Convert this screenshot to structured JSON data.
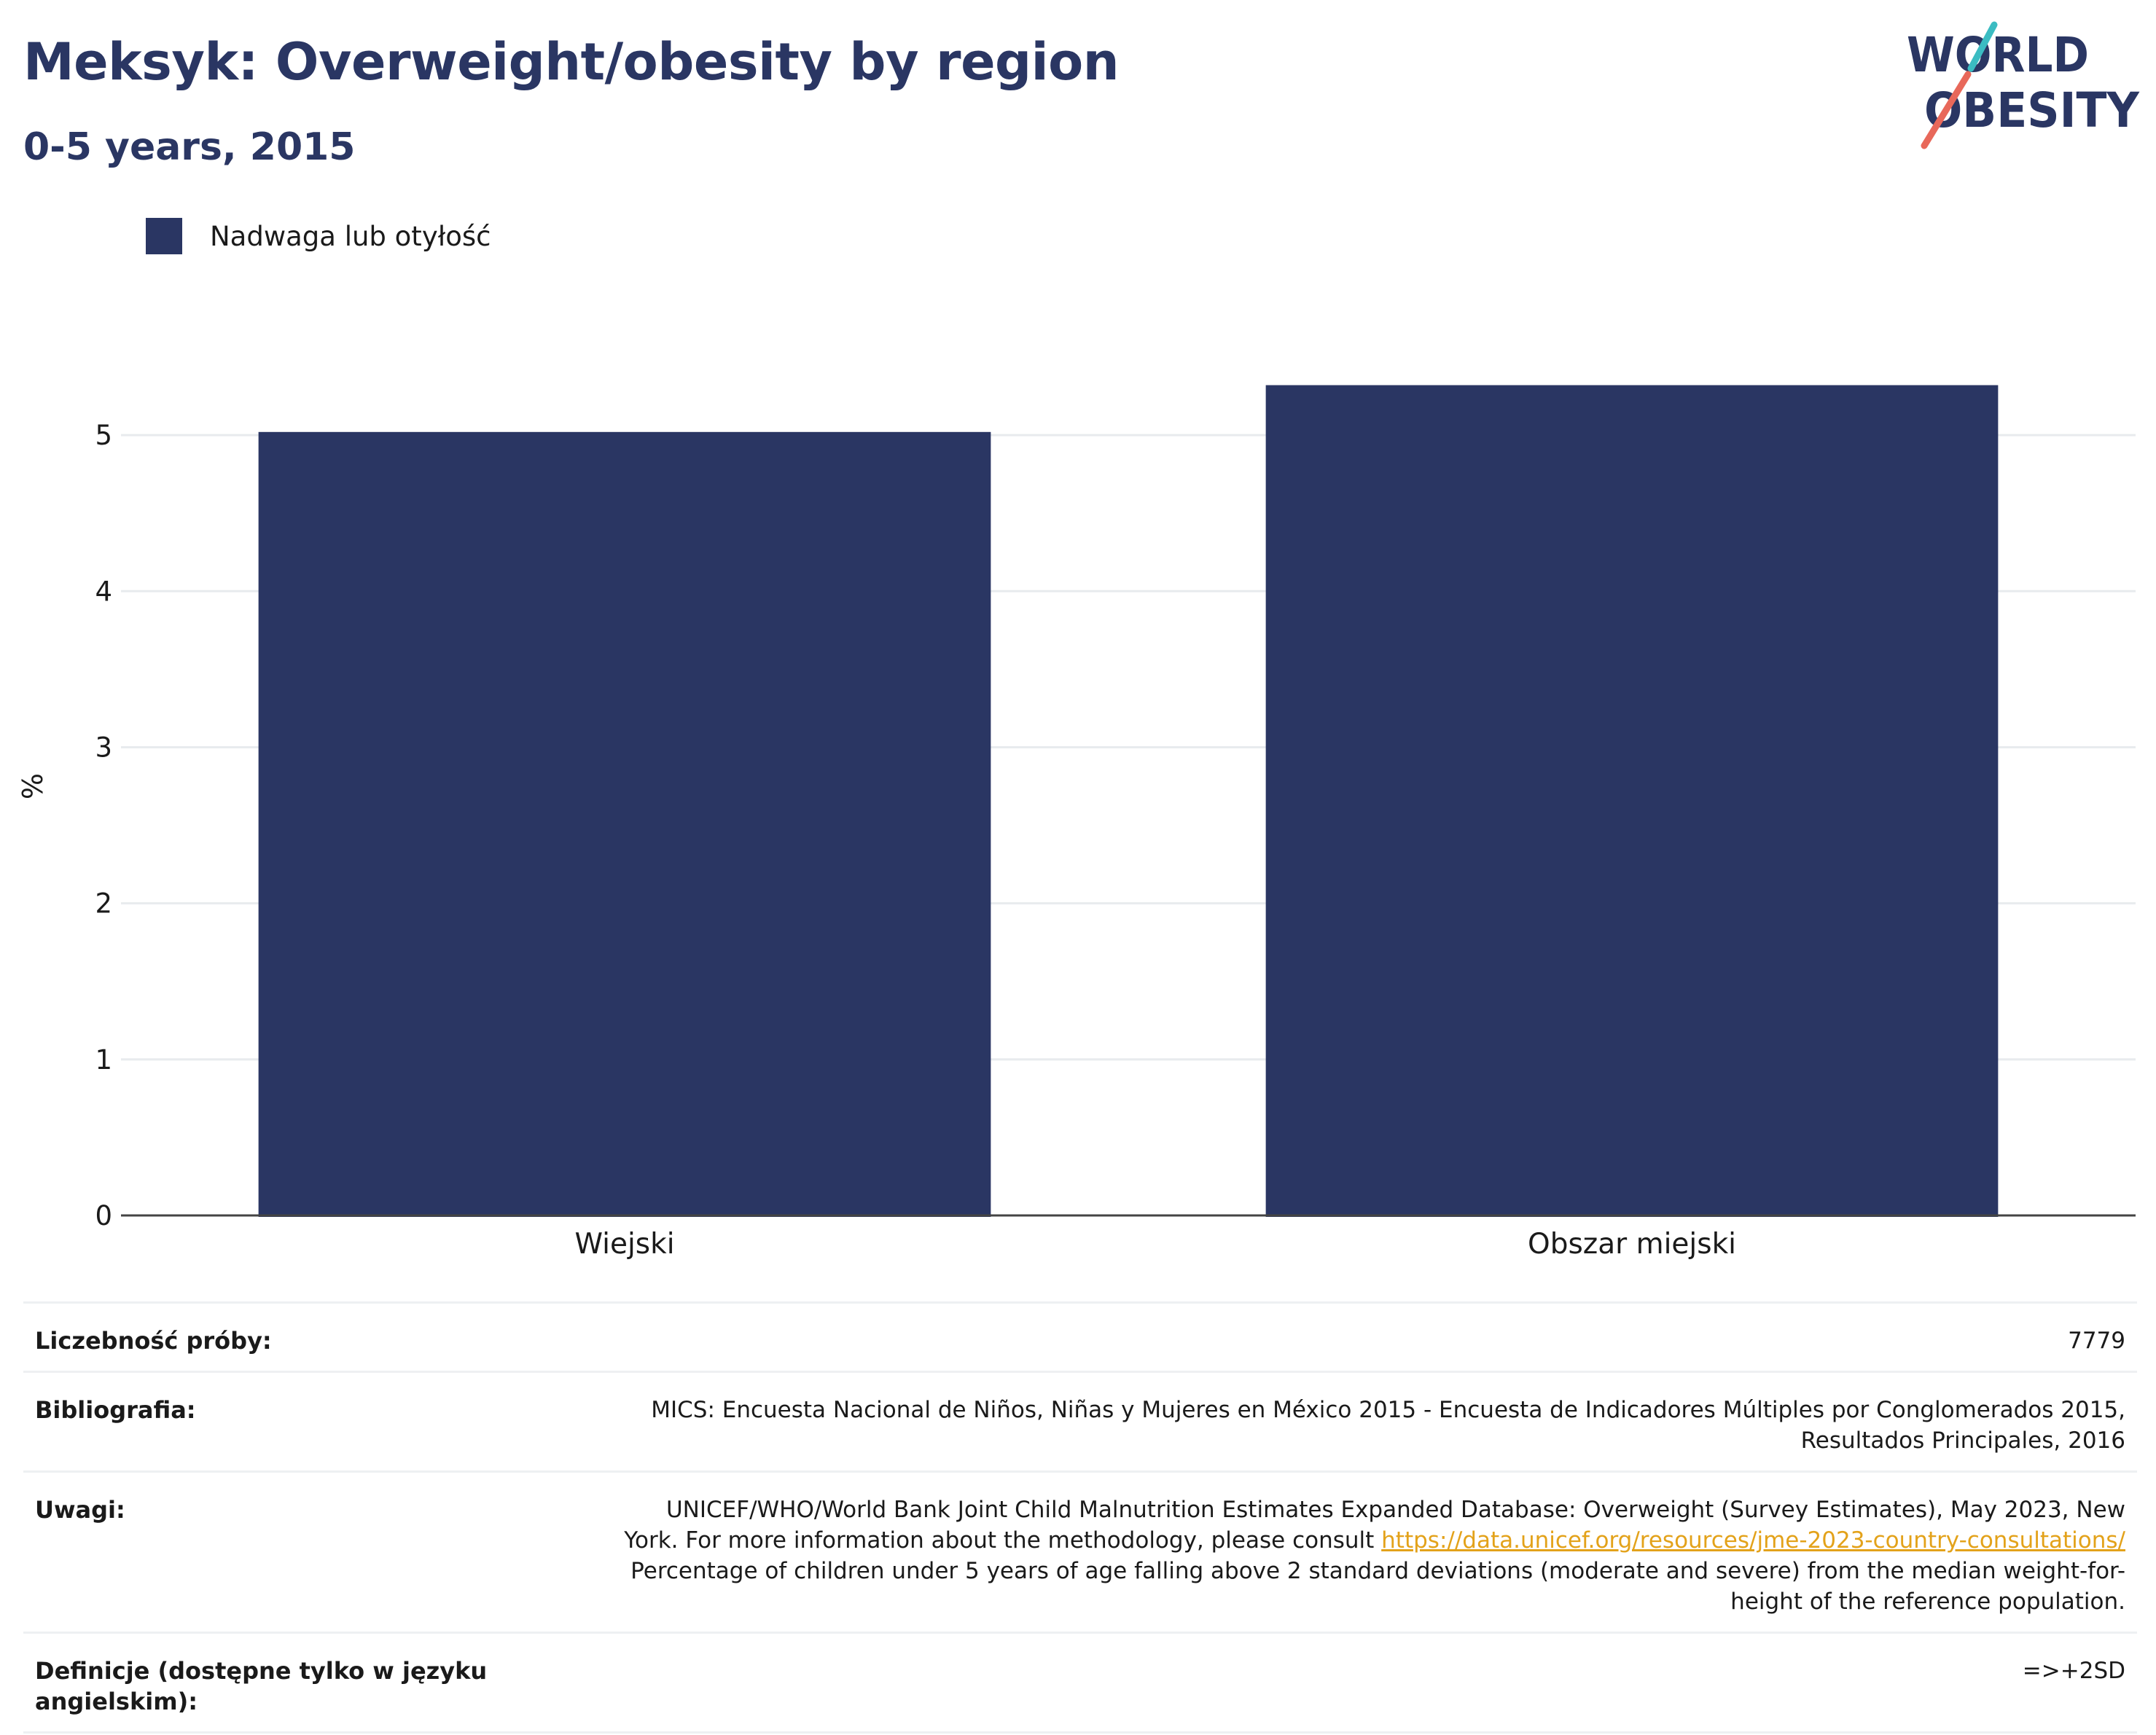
{
  "header": {
    "title": "Meksyk: Overweight/obesity by region",
    "subtitle": "0-5 years, 2015"
  },
  "logo": {
    "line1": "WORLD",
    "line2": "OBESITY",
    "text_color": "#2a3663",
    "slash_colors": [
      "#3bbcc2",
      "#e8685a"
    ]
  },
  "legend": {
    "label": "Nadwaga lub otyłość",
    "color": "#2a3663"
  },
  "chart_data": {
    "type": "bar",
    "categories": [
      "Wiejski",
      "Obszar miejski"
    ],
    "series": [
      {
        "name": "Nadwaga lub otyłość",
        "values": [
          5.02,
          5.32
        ],
        "color": "#2a3663"
      }
    ],
    "title": "Meksyk: Overweight/obesity by region",
    "subtitle": "0-5 years, 2015",
    "xlabel": "",
    "ylabel": "%",
    "ylim": [
      0,
      5.5
    ],
    "yticks": [
      "0",
      "1",
      "2",
      "3",
      "4",
      "5"
    ],
    "grid": true,
    "legend_position": "top-left"
  },
  "info": {
    "sample_label": "Liczebność próby:",
    "sample_value": "7779",
    "bibliography_label": "Bibliografia:",
    "bibliography_value": "MICS: Encuesta Nacional de Niños, Niñas y Mujeres en México 2015 - Encuesta de Indicadores Múltiples por Conglomerados 2015, Resultados Principales, 2016",
    "notes_label": "Uwagi:",
    "notes_before": "UNICEF/WHO/World Bank Joint Child Malnutrition Estimates Expanded Database: Overweight (Survey Estimates), May 2023, New York. For more information about the methodology, please consult",
    "notes_link": "https://data.unicef.org/resources/jme-2023-country-consultations/",
    "notes_after": "Percentage of children under 5 years of age falling above 2 standard deviations (moderate and severe) from the median weight-for-height of the reference population.",
    "definitions_label": "Definicje (dostępne tylko w języku angielskim):",
    "definitions_value": "=>+2SD"
  }
}
